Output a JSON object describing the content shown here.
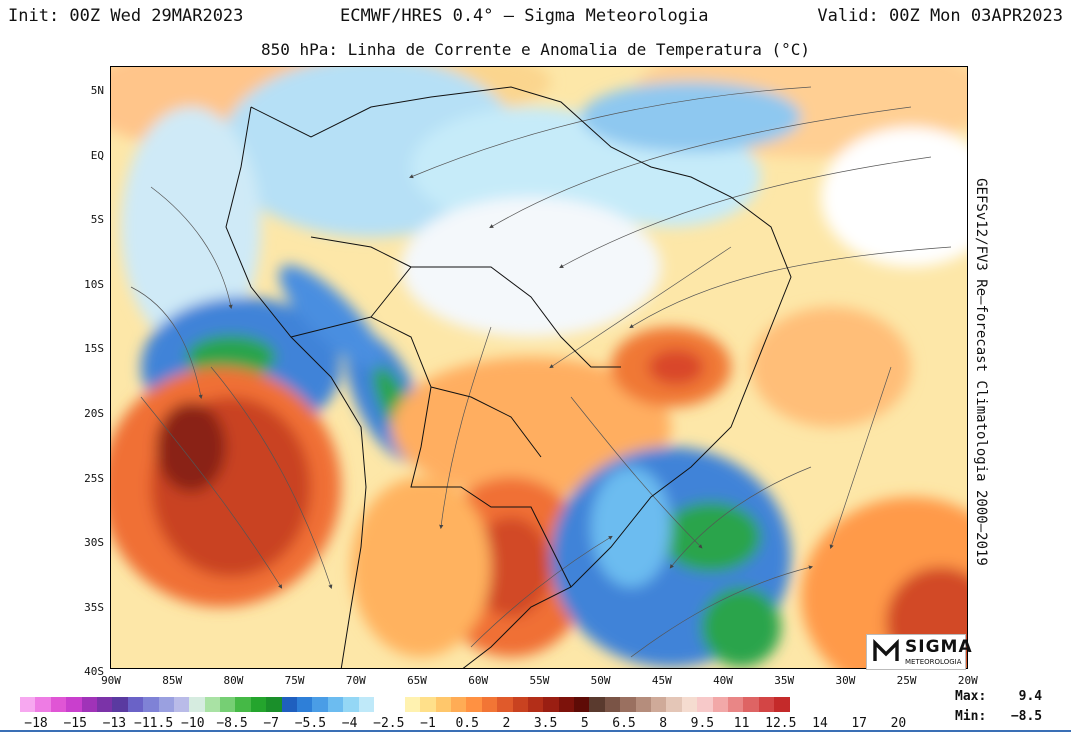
{
  "header": {
    "init": "Init: 00Z Wed 29MAR2023",
    "model": "ECMWF/HRES 0.4° – Sigma Meteorologia",
    "valid": "Valid: 00Z Mon 03APR2023"
  },
  "title": "850 hPa: Linha de Corrente e Anomalia de Temperatura (°C)",
  "side_note": "GEFSv12/FV3 Re–forecast Climatologia 2000–2019",
  "lat_labels": [
    "5N",
    "EQ",
    "5S",
    "10S",
    "15S",
    "20S",
    "25S",
    "30S",
    "35S",
    "40S"
  ],
  "lon_labels": [
    "90W",
    "85W",
    "80W",
    "75W",
    "70W",
    "65W",
    "60W",
    "55W",
    "50W",
    "45W",
    "40W",
    "35W",
    "30W",
    "25W",
    "20W"
  ],
  "colorbar": {
    "colors": [
      "#f7a8f0",
      "#ee7ce4",
      "#e055d5",
      "#c93fcd",
      "#a033b8",
      "#7b33a8",
      "#5a3aa0",
      "#6a62c7",
      "#7f82d6",
      "#9aa0e0",
      "#b9bbe8",
      "#d6ece0",
      "#a9e2a4",
      "#76cf74",
      "#45b946",
      "#24a52d",
      "#1a8f2a",
      "#1f5fbf",
      "#2e7fd8",
      "#4a9de6",
      "#6cbcf0",
      "#94d7f5",
      "#bfe9f9",
      "#ffffff",
      "#ffffff",
      "#fff2b0",
      "#ffe08a",
      "#ffc76b",
      "#ffac55",
      "#ff9142",
      "#f27535",
      "#e05a2b",
      "#c94220",
      "#b32e18",
      "#9a1e12",
      "#7d120b",
      "#5e0b06",
      "#5a3a2e",
      "#7a5446",
      "#9a7060",
      "#b58d7c",
      "#cfaa99",
      "#e4c6b7",
      "#f5dcd0",
      "#f7c9c9",
      "#f2a8a8",
      "#e98686",
      "#de6464",
      "#d34545",
      "#c42a2a"
    ],
    "labels": [
      "−18",
      "−15",
      "−13",
      "−11.5",
      "−10",
      "−8.5",
      "−7",
      "−5.5",
      "−4",
      "−2.5",
      "−1",
      "0.5",
      "2",
      "3.5",
      "5",
      "6.5",
      "8",
      "9.5",
      "11",
      "12.5",
      "14",
      "17",
      "20"
    ]
  },
  "stats": {
    "max_label": "Max:",
    "max_value": "9.4",
    "min_label": "Min:",
    "min_value": "−8.5"
  },
  "logo": {
    "name": "SIGMA",
    "sub": "METEOROLOGIA"
  }
}
